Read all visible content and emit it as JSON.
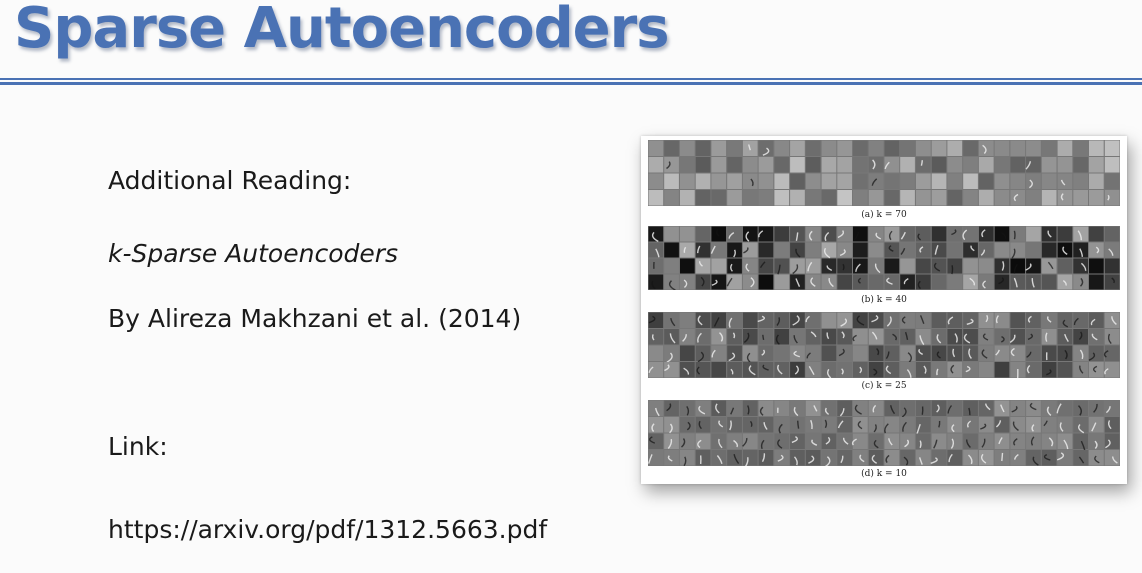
{
  "slide": {
    "title": "Sparse Autoencoders",
    "heading": "Additional Reading:",
    "paper_title": "k-Sparse Autoencoders",
    "authors": "By Alireza Makhzani et al. (2014)",
    "link_label": "Link:",
    "link_url": "https://arxiv.org/pdf/1312.5663.pdf"
  },
  "figure": {
    "panels": [
      {
        "caption": "(a) k = 70"
      },
      {
        "caption": "(b) k = 40"
      },
      {
        "caption": "(c) k = 25"
      },
      {
        "caption": "(d) k = 10"
      }
    ]
  }
}
